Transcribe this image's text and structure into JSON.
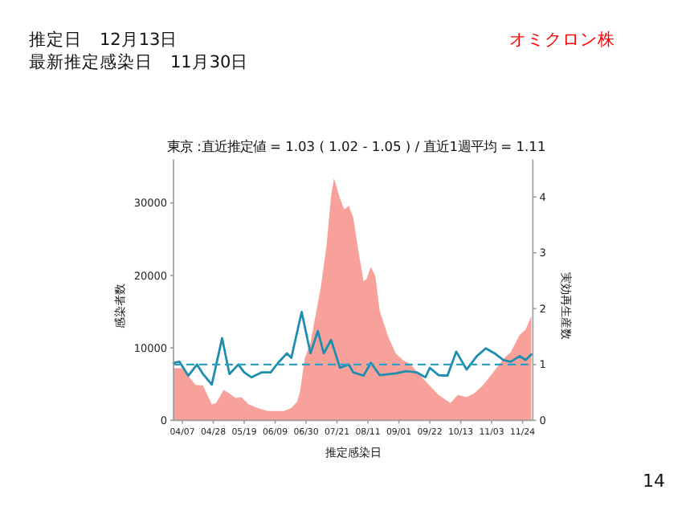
{
  "chart_data": {
    "type": "area",
    "title": "東京 :直近推定値 = 1.03 ( 1.02 - 1.05 ) / 直近1週平均 = 1.11",
    "xlabel": "推定感染日",
    "ylabel": "感染者数",
    "y2label": "実効再生産数",
    "annotations": [
      "推定日　12月13日",
      "最新推定感染日　11月30日",
      "オミクロン株",
      "14"
    ],
    "xlim": [
      "--04-01",
      "--12-01"
    ],
    "xticks": [
      {
        "value": "--04-07",
        "label": "04/07"
      },
      {
        "value": "--04-28",
        "label": "04/28"
      },
      {
        "value": "--05-19",
        "label": "05/19"
      },
      {
        "value": "--06-09",
        "label": "06/09"
      },
      {
        "value": "--06-30",
        "label": "06/30"
      },
      {
        "value": "--07-21",
        "label": "07/21"
      },
      {
        "value": "--08-11",
        "label": "08/11"
      },
      {
        "value": "--09-01",
        "label": "09/01"
      },
      {
        "value": "--09-22",
        "label": "09/22"
      },
      {
        "value": "--10-13",
        "label": "10/13"
      },
      {
        "value": "--11-03",
        "label": "11/03"
      },
      {
        "value": "--11-24",
        "label": "11/24"
      }
    ],
    "ylim": [
      0,
      36000
    ],
    "yticks": [
      0,
      10000,
      20000,
      30000
    ],
    "y2lim": [
      0,
      4.67
    ],
    "y2ticks": [
      0,
      1,
      2,
      3,
      4
    ],
    "grid": false,
    "series": [
      {
        "color": "#f8a19b",
        "x": [
          "--04-01",
          "--04-07",
          "--04-12",
          "--04-16",
          "--04-21",
          "--04-27",
          "--04-30",
          "--05-05",
          "--05-09",
          "--05-13",
          "--05-17",
          "--05-22",
          "--05-28",
          "--06-04",
          "--06-15",
          "--06-20",
          "--06-24",
          "--06-26",
          "--06-29",
          "--07-03",
          "--07-07",
          "--07-10",
          "--07-14",
          "--07-17",
          "--07-19",
          "--07-23",
          "--07-26",
          "--07-29",
          "--08-01",
          "--08-05",
          "--08-08",
          "--08-10",
          "--08-13",
          "--08-16",
          "--08-19",
          "--08-25",
          "--08-30",
          "--09-04",
          "--09-09",
          "--09-15",
          "--09-20",
          "--09-28",
          "--10-06",
          "--10-11",
          "--10-17",
          "--10-22",
          "--10-28",
          "--11-04",
          "--11-11",
          "--11-16",
          "--11-22",
          "--11-26",
          "--11-30"
        ],
        "values": [
          7200,
          7200,
          5900,
          4900,
          4800,
          2200,
          2400,
          4200,
          3700,
          3100,
          3200,
          2200,
          1700,
          1300,
          1300,
          1700,
          2600,
          4100,
          8500,
          10700,
          15100,
          18400,
          24300,
          31000,
          33400,
          30600,
          29100,
          29600,
          28000,
          22800,
          19200,
          19500,
          21200,
          19900,
          15100,
          11400,
          9200,
          8300,
          7700,
          6300,
          5200,
          3500,
          2400,
          3500,
          3200,
          3700,
          4800,
          6600,
          8500,
          9400,
          11800,
          12500,
          14400
        ]
      },
      {
        "type": "line",
        "axis": "y2",
        "color": "#1f8eae",
        "x": [
          "--04-01",
          "--04-05",
          "--04-11",
          "--04-17",
          "--04-21",
          "--04-27",
          "--05-04",
          "--05-09",
          "--05-15",
          "--05-19",
          "--05-24",
          "--05-31",
          "--06-06",
          "--06-11",
          "--06-17",
          "--06-20",
          "--06-27",
          "--07-03",
          "--07-08",
          "--07-12",
          "--07-17",
          "--07-23",
          "--07-29",
          "--08-01",
          "--08-08",
          "--08-13",
          "--08-19",
          "--08-30",
          "--09-06",
          "--09-13",
          "--09-19",
          "--09-22",
          "--09-28",
          "--10-04",
          "--10-10",
          "--10-17",
          "--10-24",
          "--10-30",
          "--11-05",
          "--11-11",
          "--11-16",
          "--11-22",
          "--11-26",
          "--11-30"
        ],
        "values": [
          1.03,
          1.05,
          0.8,
          1.0,
          0.83,
          0.64,
          1.47,
          0.83,
          1.0,
          0.86,
          0.77,
          0.86,
          0.86,
          1.03,
          1.2,
          1.12,
          1.94,
          1.2,
          1.6,
          1.2,
          1.44,
          0.94,
          1.0,
          0.86,
          0.8,
          1.03,
          0.81,
          0.84,
          0.88,
          0.86,
          0.77,
          0.94,
          0.81,
          0.8,
          1.23,
          0.91,
          1.15,
          1.29,
          1.2,
          1.08,
          1.05,
          1.15,
          1.08,
          1.18
        ]
      }
    ],
    "ref_lines": [
      {
        "axis": "y2",
        "value": 1,
        "color": "#2a9fc8",
        "line_style": "dashed"
      }
    ]
  }
}
